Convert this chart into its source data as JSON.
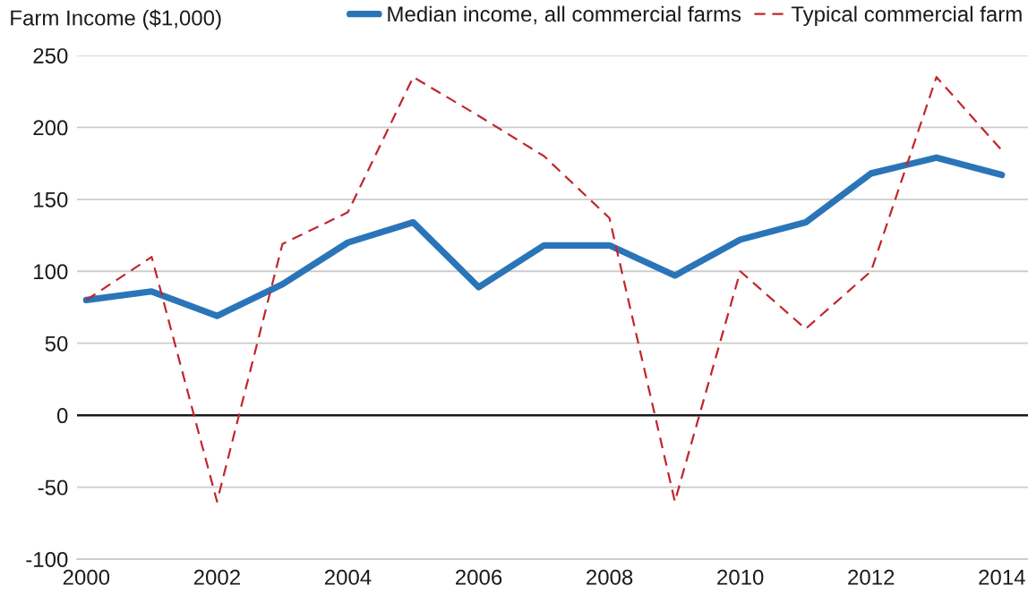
{
  "chart_data": {
    "type": "line",
    "ylabel": "Farm Income ($1,000)",
    "x": [
      2000,
      2001,
      2002,
      2003,
      2004,
      2005,
      2006,
      2007,
      2008,
      2009,
      2010,
      2011,
      2012,
      2013,
      2014
    ],
    "series": [
      {
        "name": "Median income, all commercial farms",
        "color": "#2a75b8",
        "line_style": "solid",
        "values": [
          80,
          86,
          69,
          91,
          120,
          134,
          89,
          118,
          118,
          97,
          122,
          134,
          168,
          179,
          167
        ]
      },
      {
        "name": "Typical commercial farm",
        "color": "#c1272d",
        "line_style": "dashed",
        "values": [
          80,
          110,
          -60,
          119,
          141,
          235,
          208,
          180,
          137,
          -60,
          100,
          60,
          100,
          235,
          184
        ]
      }
    ],
    "xlim": [
      1999.86,
      2014.4
    ],
    "xticks": [
      2000,
      2002,
      2004,
      2006,
      2008,
      2010,
      2012,
      2014
    ],
    "ylim": [
      -100,
      250
    ],
    "yticks": [
      -100,
      -50,
      0,
      50,
      100,
      150,
      200,
      250
    ],
    "ref_lines": [
      {
        "axis": "y",
        "value": 0,
        "color": "#1a1a1a"
      }
    ],
    "grid": "y",
    "legend": "top right"
  }
}
